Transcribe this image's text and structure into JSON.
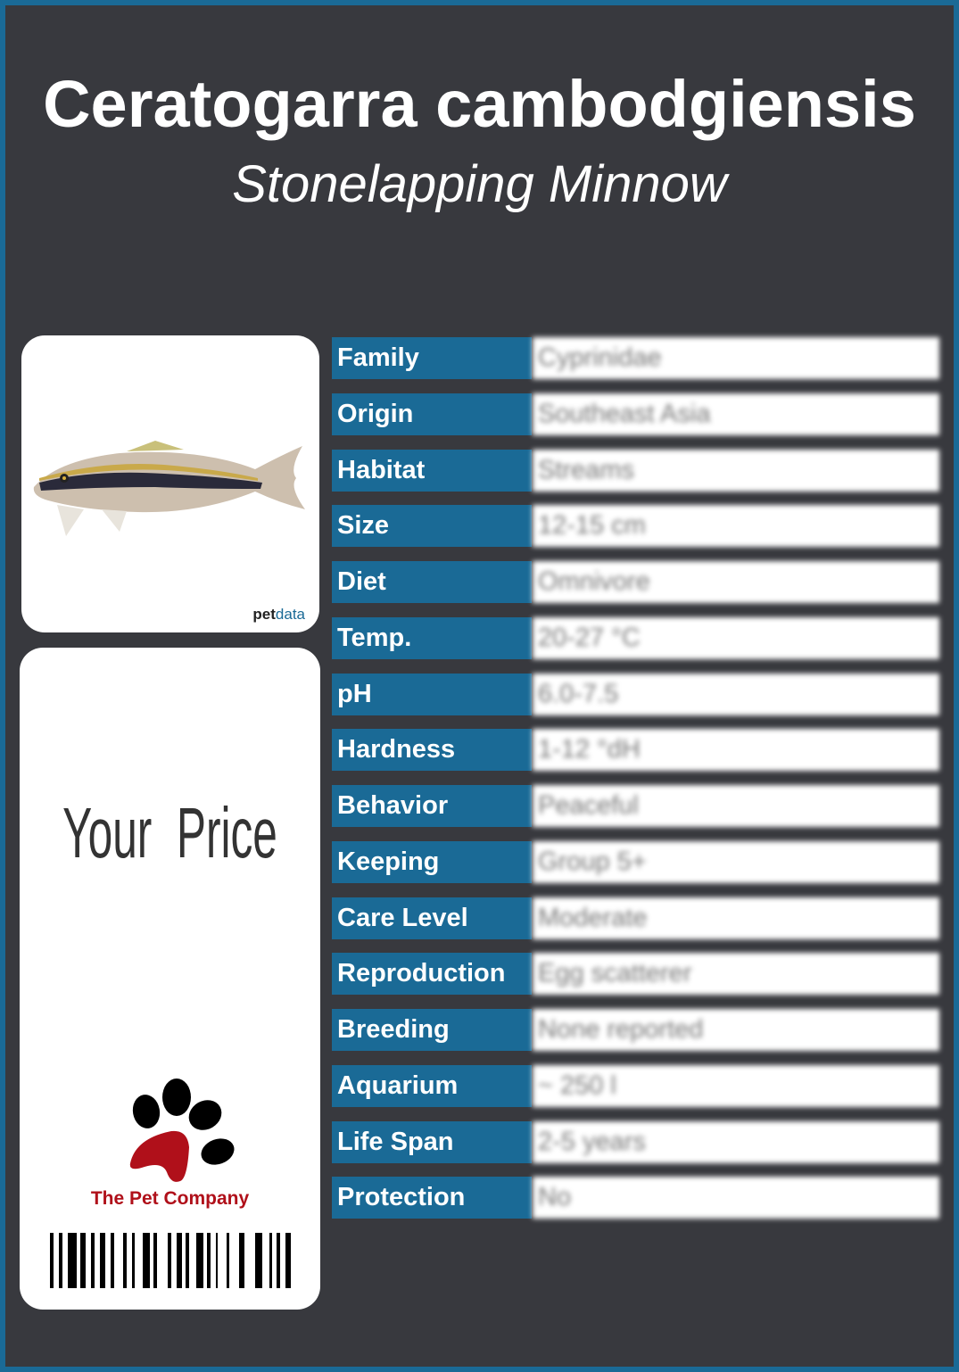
{
  "header": {
    "scientific_name": "Ceratogarra cambodgiensis",
    "common_name": "Stonelapping Minnow"
  },
  "photo": {
    "watermark_prefix": "pet",
    "watermark_suffix": "data"
  },
  "price": {
    "label": "Your  Price"
  },
  "brand": {
    "name": "The Pet Company",
    "colors": {
      "paw_pad": "#b0101a",
      "toes": "#000000"
    }
  },
  "colors": {
    "border": "#1a6a96",
    "background": "#38393e",
    "label_cell": "#1a6a96"
  },
  "facts": [
    {
      "label": "Family",
      "value": "Cyprinidae"
    },
    {
      "label": "Origin",
      "value": "Southeast Asia"
    },
    {
      "label": "Habitat",
      "value": "Streams"
    },
    {
      "label": "Size",
      "value": "12-15 cm"
    },
    {
      "label": "Diet",
      "value": "Omnivore"
    },
    {
      "label": "Temp.",
      "value": "20-27 °C"
    },
    {
      "label": "pH",
      "value": "6.0-7.5"
    },
    {
      "label": "Hardness",
      "value": "1-12 °dH"
    },
    {
      "label": "Behavior",
      "value": "Peaceful"
    },
    {
      "label": "Keeping",
      "value": "Group 5+"
    },
    {
      "label": "Care Level",
      "value": "Moderate"
    },
    {
      "label": "Reproduction",
      "value": "Egg scatterer"
    },
    {
      "label": "Breeding",
      "value": "None reported"
    },
    {
      "label": "Aquarium",
      "value": "~ 250 l"
    },
    {
      "label": "Life Span",
      "value": "2-5 years"
    },
    {
      "label": "Protection",
      "value": "No"
    }
  ]
}
